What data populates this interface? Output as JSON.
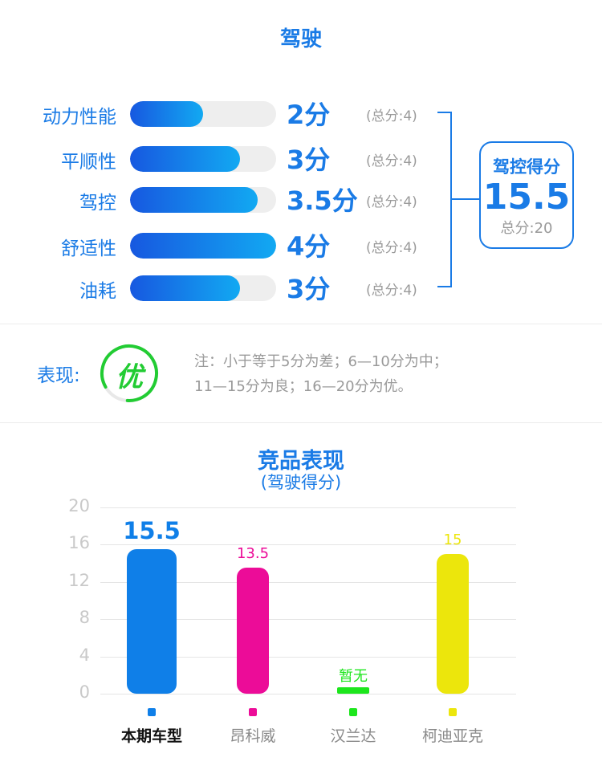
{
  "section_title": "驾驶",
  "scores": [
    {
      "label": "动力性能",
      "value": 2,
      "value_text": "2分",
      "total_text": "(总分:4)"
    },
    {
      "label": "平顺性",
      "value": 3,
      "value_text": "3分",
      "total_text": "(总分:4)"
    },
    {
      "label": "驾控",
      "value": 3.5,
      "value_text": "3.5分",
      "total_text": "(总分:4)"
    },
    {
      "label": "舒适性",
      "value": 4,
      "value_text": "4分",
      "total_text": "(总分:4)"
    },
    {
      "label": "油耗",
      "value": 3,
      "value_text": "3分",
      "total_text": "(总分:4)"
    }
  ],
  "score_max": 4,
  "summary_box": {
    "title": "驾控得分",
    "value": "15.5",
    "total": "总分:20"
  },
  "performance": {
    "label": "表现:",
    "grade": "优",
    "note_line1": "注：小于等于5分为差；6—10分为中；",
    "note_line2": "11—15分为良；16—20分为优。",
    "colors": {
      "ring": "#22cc33"
    }
  },
  "chart_data": {
    "type": "bar",
    "title": "竞品表现",
    "subtitle": "(驾驶得分)",
    "categories": [
      "本期车型",
      "昂科威",
      "汉兰达",
      "柯迪亚克"
    ],
    "values": [
      15.5,
      13.5,
      null,
      15
    ],
    "value_labels": [
      "15.5",
      "13.5",
      "暂无",
      "15"
    ],
    "colors": [
      "#0f7fe8",
      "#ec0c98",
      "#1de61d",
      "#ece60c"
    ],
    "ylim": [
      0,
      20
    ],
    "yticks": [
      "0",
      "4",
      "8",
      "12",
      "16",
      "20"
    ],
    "grid": true
  }
}
